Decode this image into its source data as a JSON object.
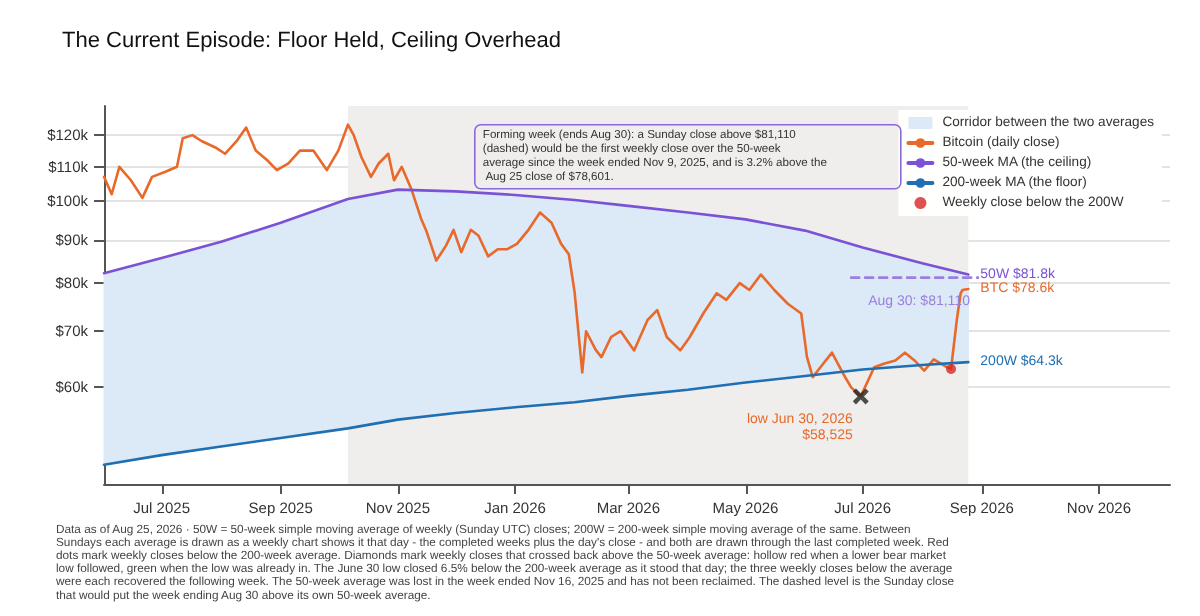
{
  "chart_data": {
    "type": "line",
    "title": "The Current Episode: Floor Held, Ceiling Overhead",
    "xlim": [
      "2025-06-01",
      "2026-12-08"
    ],
    "xticks": [
      {
        "value": "2025-07-01",
        "label": "Jul 2025"
      },
      {
        "value": "2025-09-01",
        "label": "Sep 2025"
      },
      {
        "value": "2025-11-01",
        "label": "Nov 2025"
      },
      {
        "value": "2026-01-01",
        "label": "Jan 2026"
      },
      {
        "value": "2026-03-01",
        "label": "Mar 2026"
      },
      {
        "value": "2026-05-01",
        "label": "May 2026"
      },
      {
        "value": "2026-07-01",
        "label": "Jul 2026"
      },
      {
        "value": "2026-09-01",
        "label": "Sep 2026"
      },
      {
        "value": "2026-11-01",
        "label": "Nov 2026"
      }
    ],
    "ylim": [
      46000,
      130000
    ],
    "yticks": [
      {
        "value": 60000,
        "label": "$60k"
      },
      {
        "value": 70000,
        "label": "$70k"
      },
      {
        "value": 80000,
        "label": "$80k"
      },
      {
        "value": 90000,
        "label": "$90k"
      },
      {
        "value": 100000,
        "label": "$100k"
      },
      {
        "value": 110000,
        "label": "$110k"
      },
      {
        "value": 120000,
        "label": "$120k"
      }
    ],
    "log": "y",
    "grid": "y",
    "legend": "top right",
    "marker": "none",
    "line_style": "solid",
    "bands": [
      {
        "axis": "x",
        "from": "2025-10-06",
        "to": "2026-08-25",
        "color": "#efeeec"
      }
    ],
    "series": [
      {
        "name": "Corridor between the two averages",
        "type": "area",
        "color": "#dce9f7",
        "x": [
          "2025-06-01",
          "2025-07-01",
          "2025-08-01",
          "2025-09-01",
          "2025-10-06",
          "2025-11-01",
          "2025-12-01",
          "2026-01-01",
          "2026-02-01",
          "2026-03-01",
          "2026-04-01",
          "2026-05-01",
          "2026-06-01",
          "2026-07-01",
          "2026-08-01",
          "2026-08-25"
        ],
        "values": [
          null,
          null,
          null,
          null,
          null,
          null,
          null,
          null,
          null,
          null,
          null,
          null,
          null,
          null,
          null,
          null
        ],
        "upper": [
          82100,
          85600,
          89500,
          94300,
          100700,
          103300,
          102800,
          101800,
          100400,
          98800,
          97000,
          95200,
          92300,
          88100,
          84400,
          81800
        ],
        "lower": [
          48500,
          49800,
          51000,
          52200,
          53600,
          54900,
          55900,
          56800,
          57600,
          58600,
          59600,
          60800,
          61900,
          63000,
          63800,
          64300
        ]
      },
      {
        "name": "Bitcoin (daily close)",
        "type": "line",
        "color": "#e8692a",
        "x": [
          "2025-06-01",
          "2025-06-05",
          "2025-06-09",
          "2025-06-15",
          "2025-06-21",
          "2025-06-26",
          "2025-07-03",
          "2025-07-09",
          "2025-07-12",
          "2025-07-17",
          "2025-07-22",
          "2025-07-29",
          "2025-08-03",
          "2025-08-09",
          "2025-08-14",
          "2025-08-19",
          "2025-08-25",
          "2025-08-30",
          "2025-09-05",
          "2025-09-11",
          "2025-09-18",
          "2025-09-25",
          "2025-10-01",
          "2025-10-06",
          "2025-10-09",
          "2025-10-13",
          "2025-10-18",
          "2025-10-22",
          "2025-10-27",
          "2025-10-30",
          "2025-11-03",
          "2025-11-08",
          "2025-11-13",
          "2025-11-16",
          "2025-11-21",
          "2025-11-26",
          "2025-11-30",
          "2025-12-04",
          "2025-12-09",
          "2025-12-13",
          "2025-12-18",
          "2025-12-23",
          "2025-12-28",
          "2026-01-02",
          "2026-01-08",
          "2026-01-14",
          "2026-01-20",
          "2026-01-25",
          "2026-01-29",
          "2026-02-01",
          "2026-02-05",
          "2026-02-07",
          "2026-02-12",
          "2026-02-15",
          "2026-02-20",
          "2026-02-25",
          "2026-03-04",
          "2026-03-11",
          "2026-03-16",
          "2026-03-21",
          "2026-03-28",
          "2026-04-02",
          "2026-04-09",
          "2026-04-16",
          "2026-04-21",
          "2026-04-28",
          "2026-05-03",
          "2026-05-09",
          "2026-05-16",
          "2026-05-23",
          "2026-05-30",
          "2026-06-02",
          "2026-06-05",
          "2026-06-09",
          "2026-06-15",
          "2026-06-21",
          "2026-06-25",
          "2026-06-30",
          "2026-07-07",
          "2026-07-12",
          "2026-07-18",
          "2026-07-23",
          "2026-07-28",
          "2026-08-02",
          "2026-08-07",
          "2026-08-14",
          "2026-08-16",
          "2026-08-19",
          "2026-08-21",
          "2026-08-22",
          "2026-08-25"
        ],
        "values": [
          107000,
          102000,
          110000,
          106000,
          101000,
          107000,
          108500,
          110000,
          119000,
          120000,
          118000,
          116000,
          114000,
          118000,
          122500,
          115000,
          112000,
          109000,
          111000,
          115000,
          115000,
          109000,
          115000,
          123500,
          120000,
          113000,
          107000,
          111000,
          114000,
          106000,
          110000,
          103500,
          95500,
          92000,
          85000,
          88500,
          92500,
          87000,
          92500,
          91000,
          86000,
          87700,
          87700,
          89000,
          92500,
          97000,
          94300,
          89000,
          86500,
          78000,
          62500,
          70000,
          66500,
          65200,
          68900,
          70000,
          66400,
          72200,
          74200,
          68900,
          66400,
          68900,
          73500,
          77700,
          76300,
          79900,
          78400,
          81800,
          78400,
          75500,
          73500,
          65200,
          61700,
          63400,
          66000,
          62200,
          60000,
          58525,
          63400,
          64000,
          64600,
          66000,
          64600,
          62800,
          64800,
          63400,
          63100,
          72200,
          77700,
          78400,
          78601
        ]
      },
      {
        "name": "50-week MA (the ceiling)",
        "type": "line",
        "color": "#7b52d6",
        "x": [
          "2025-06-01",
          "2025-07-01",
          "2025-08-01",
          "2025-09-01",
          "2025-10-06",
          "2025-11-01",
          "2025-12-01",
          "2026-01-01",
          "2026-02-01",
          "2026-03-01",
          "2026-04-01",
          "2026-05-01",
          "2026-06-01",
          "2026-07-01",
          "2026-08-01",
          "2026-08-25"
        ],
        "values": [
          82100,
          85600,
          89500,
          94300,
          100700,
          103300,
          102800,
          101800,
          100400,
          98800,
          97000,
          95200,
          92300,
          88100,
          84400,
          81800
        ]
      },
      {
        "name": "200-week MA (the floor)",
        "type": "line",
        "color": "#1f6fb2",
        "x": [
          "2025-06-01",
          "2025-07-01",
          "2025-08-01",
          "2025-09-01",
          "2025-10-06",
          "2025-11-01",
          "2025-12-01",
          "2026-01-01",
          "2026-02-01",
          "2026-03-01",
          "2026-04-01",
          "2026-05-01",
          "2026-06-01",
          "2026-07-01",
          "2026-08-01",
          "2026-08-25"
        ],
        "values": [
          48500,
          49800,
          51000,
          52200,
          53600,
          54900,
          55900,
          56800,
          57600,
          58600,
          59600,
          60800,
          61900,
          63000,
          63800,
          64300
        ]
      },
      {
        "name": "Weekly close below the 200W",
        "type": "scatter",
        "marker": "circle",
        "color": "#d62728",
        "x": [
          "2026-08-16"
        ],
        "values": [
          63100
        ]
      },
      {
        "type": "line",
        "color": "#9b7fe0",
        "line_style": "dashed",
        "x": [
          "2026-06-25",
          "2026-08-30"
        ],
        "values": [
          81110,
          81110
        ]
      },
      {
        "type": "scatter",
        "marker": "cross",
        "color": "#222222",
        "x": [
          "2026-06-30"
        ],
        "values": [
          58525
        ]
      }
    ],
    "annotations": [
      {
        "text": "50W $81.8k",
        "x": "2026-08-25",
        "y": 81800
      },
      {
        "text": "BTC $78.6k",
        "x": "2026-08-25",
        "y": 78601
      },
      {
        "text": "200W $64.3k",
        "x": "2026-08-25",
        "y": 64300
      },
      {
        "text": "Aug 30: $81,110",
        "x": "2026-08-30",
        "y": 81110
      },
      {
        "text": "low Jun 30, 2026\n$58,525",
        "x": "2026-06-30",
        "y": 58525
      },
      "Forming week (ends Aug 30): a Sunday close above $81,110 (dashed) would be the first weekly close over the 50-week average since the week ended Nov 9, 2025, and is 3.2% above the Aug 25 close of $78,601.",
      "Data as of Aug 25, 2026 · 50W = 50-week simple moving average of weekly (Sunday UTC) closes; 200W = 200-week simple moving average of the same. Between Sundays each average is drawn as a weekly chart shows it that day - the completed weeks plus the day's close - and both are drawn through the last completed week. Red dots mark weekly closes below the 200-week average. Diamonds mark weekly closes that crossed back above the 50-week average: hollow red when a lower bear market low followed, green when the low was already in. The June 30 low closed 6.5% below the 200-week average as it stood that day; the three weekly closes below the average were each recovered the following week. The 50-week average was lost in the week ended Nov 16, 2025 and has not been reclaimed. The dashed level is the Sunday close that would put the week ending Aug 30 above its own 50-week average."
    ]
  }
}
